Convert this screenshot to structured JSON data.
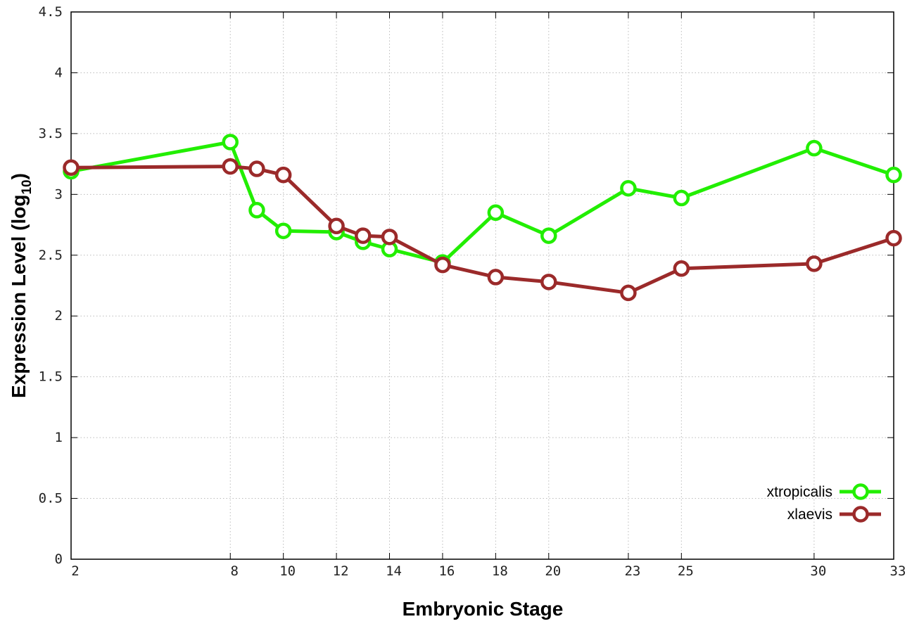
{
  "chart_data": {
    "type": "line",
    "xlabel": "Embryonic Stage",
    "ylabel_main": "Expression Level (log",
    "ylabel_sub": "10",
    "ylabel_close": ")",
    "x_ticks": [
      2,
      8,
      10,
      12,
      14,
      16,
      18,
      20,
      23,
      25,
      30,
      33
    ],
    "y_ticks": [
      "0",
      "0.5",
      "1",
      "1.5",
      "2",
      "2.5",
      "3",
      "3.5",
      "4",
      "4.5"
    ],
    "xlim": [
      2,
      33
    ],
    "ylim": [
      0,
      4.5
    ],
    "grid": true,
    "legend_position": "bottom-right",
    "series": [
      {
        "name": "xtropicalis",
        "color": "#22ee00",
        "x": [
          2,
          8,
          9,
          10,
          12,
          13,
          14,
          16,
          18,
          20,
          23,
          25,
          30,
          33
        ],
        "y": [
          3.19,
          3.43,
          2.87,
          2.7,
          2.69,
          2.61,
          2.55,
          2.44,
          2.85,
          2.66,
          3.05,
          2.97,
          3.38,
          3.16
        ]
      },
      {
        "name": "xlaevis",
        "color": "#9b2a2a",
        "x": [
          2,
          8,
          9,
          10,
          12,
          13,
          14,
          16,
          18,
          20,
          23,
          25,
          30,
          33
        ],
        "y": [
          3.22,
          3.23,
          3.21,
          3.16,
          2.74,
          2.66,
          2.65,
          2.42,
          2.32,
          2.28,
          2.19,
          2.39,
          2.43,
          2.64
        ]
      }
    ]
  }
}
